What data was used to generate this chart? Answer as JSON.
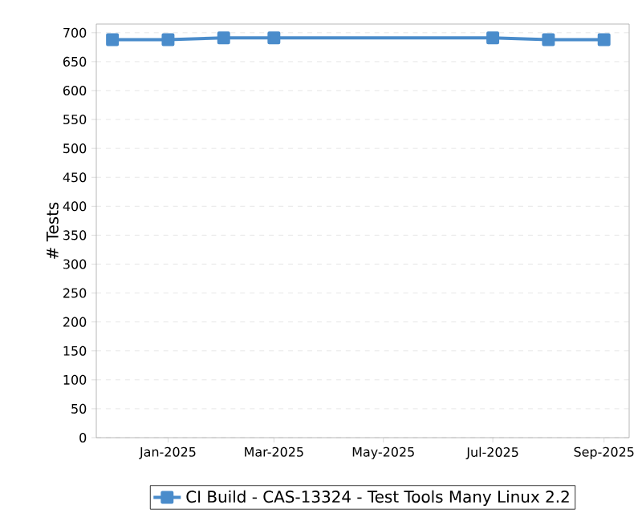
{
  "chart_data": {
    "type": "line",
    "ylabel": "# Tests",
    "x": [
      "2024-12",
      "2025-01",
      "2025-02",
      "2025-03",
      "2025-07",
      "2025-08",
      "2025-09"
    ],
    "series": [
      {
        "name": "CI Build - CAS-13324 - Test Tools Many Linux 2.2",
        "color": "#4a8ccb",
        "values": [
          688,
          688,
          691,
          691,
          691,
          688,
          688
        ]
      }
    ],
    "xlim": [
      "2024-11-22",
      "2025-09-15"
    ],
    "xticks": [
      {
        "value": "2025-01",
        "label": "Jan-2025"
      },
      {
        "value": "2025-03",
        "label": "Mar-2025"
      },
      {
        "value": "2025-05",
        "label": "May-2025"
      },
      {
        "value": "2025-07",
        "label": "Jul-2025"
      },
      {
        "value": "2025-09",
        "label": "Sep-2025"
      }
    ],
    "ylim": [
      0,
      715
    ],
    "yticks": [
      0,
      50,
      100,
      150,
      200,
      250,
      300,
      350,
      400,
      450,
      500,
      550,
      600,
      650,
      700
    ],
    "grid": "y",
    "legend": "bottom",
    "marker": "square",
    "line_style": "solid"
  }
}
